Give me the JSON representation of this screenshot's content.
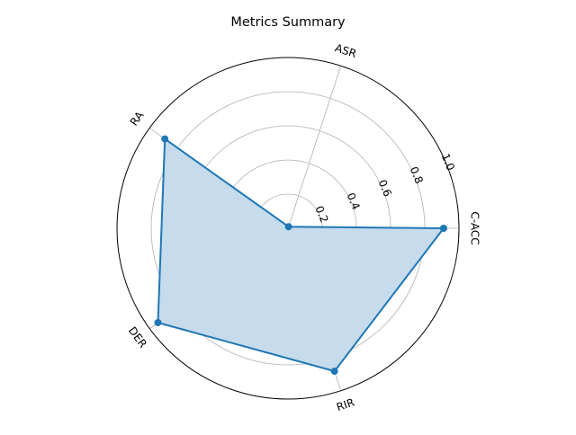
{
  "chart_data": {
    "type": "radar",
    "title": "Metrics Summary",
    "categories": [
      "C-ACC",
      "ASR",
      "RA",
      "DER",
      "RIR"
    ],
    "series": [
      {
        "values": [
          0.91,
          0.01,
          0.89,
          0.94,
          0.88
        ]
      }
    ],
    "rlim": [
      0,
      1.0
    ],
    "r_ticks": [
      "0.2",
      "0.4",
      "0.6",
      "0.8",
      "1.0"
    ],
    "grid": true,
    "colors": {
      "line": "#1f77b4",
      "fill": "#c6dbec",
      "grid": "#b0b0b0",
      "spine": "#000000"
    }
  }
}
